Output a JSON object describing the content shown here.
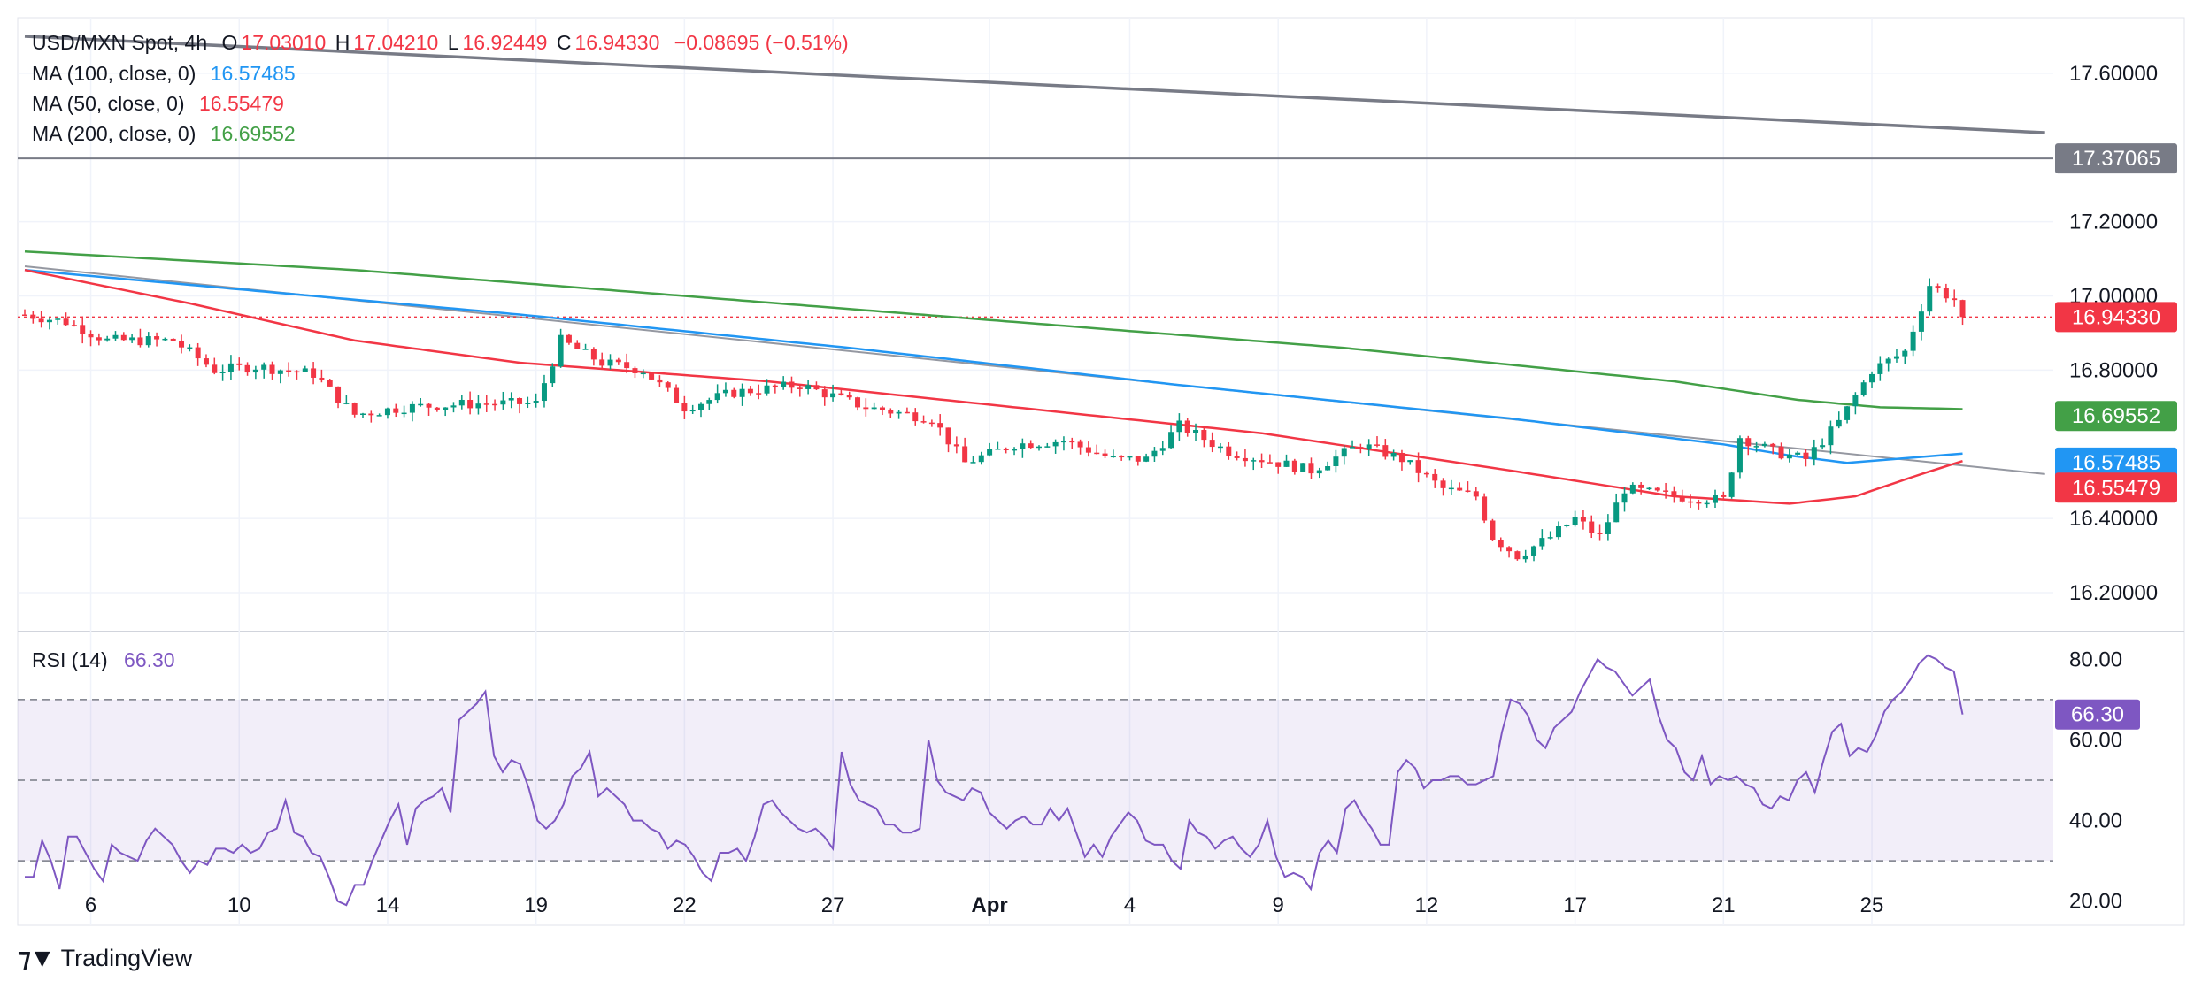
{
  "header": {
    "symbol": "USD/MXN Spot, 4h",
    "o_label": "O",
    "o_value": "17.03010",
    "h_label": "H",
    "h_value": "17.04210",
    "l_label": "L",
    "l_value": "16.92449",
    "c_label": "C",
    "c_value": "16.94330",
    "change": "−0.08695 (−0.51%)"
  },
  "legend_ma": [
    {
      "label": "MA (100, close, 0)",
      "value": "16.57485",
      "color": "#2196f3"
    },
    {
      "label": "MA (50, close, 0)",
      "value": "16.55479",
      "color": "#f23645"
    },
    {
      "label": "MA (200, close, 0)",
      "value": "16.69552",
      "color": "#43a047"
    }
  ],
  "rsi_legend": {
    "label": "RSI (14)",
    "value": "66.30",
    "color": "#7e57c2"
  },
  "brand": {
    "name": "TradingView"
  },
  "chart_data": [
    {
      "type": "candlestick",
      "title": "USD/MXN Spot, 4h",
      "ylim": [
        16.1,
        17.75
      ],
      "y_ticks": [
        "17.60000",
        "17.20000",
        "17.00000",
        "16.80000",
        "16.40000",
        "16.20000"
      ],
      "x_ticks": [
        "6",
        "10",
        "14",
        "19",
        "22",
        "27",
        "Apr",
        "4",
        "9",
        "12",
        "17",
        "21",
        "25"
      ],
      "series": [
        {
          "name": "Price",
          "color_up": "#089981",
          "color_down": "#f23645",
          "anchors": [
            [
              0,
              16.95
            ],
            [
              5,
              16.93
            ],
            [
              10,
              16.88
            ],
            [
              18,
              16.88
            ],
            [
              23,
              16.8
            ],
            [
              28,
              16.81
            ],
            [
              35,
              16.79
            ],
            [
              40,
              16.68
            ],
            [
              46,
              16.7
            ],
            [
              55,
              16.71
            ],
            [
              62,
              16.71
            ],
            [
              65,
              16.88
            ],
            [
              70,
              16.82
            ],
            [
              75,
              16.8
            ],
            [
              80,
              16.7
            ],
            [
              86,
              16.74
            ],
            [
              94,
              16.76
            ],
            [
              102,
              16.7
            ],
            [
              110,
              16.67
            ],
            [
              114,
              16.55
            ],
            [
              120,
              16.6
            ],
            [
              126,
              16.61
            ],
            [
              132,
              16.56
            ],
            [
              136,
              16.56
            ],
            [
              140,
              16.65
            ],
            [
              146,
              16.58
            ],
            [
              152,
              16.55
            ],
            [
              156,
              16.53
            ],
            [
              162,
              16.6
            ],
            [
              167,
              16.56
            ],
            [
              172,
              16.48
            ],
            [
              176,
              16.46
            ],
            [
              178,
              16.35
            ],
            [
              181,
              16.3
            ],
            [
              185,
              16.35
            ],
            [
              188,
              16.4
            ],
            [
              191,
              16.35
            ],
            [
              194,
              16.48
            ],
            [
              200,
              16.46
            ],
            [
              206,
              16.45
            ],
            [
              208,
              16.62
            ],
            [
              212,
              16.58
            ],
            [
              216,
              16.56
            ],
            [
              220,
              16.66
            ],
            [
              224,
              16.8
            ],
            [
              228,
              16.85
            ],
            [
              231,
              17.03
            ],
            [
              234,
              16.99
            ],
            [
              235,
              16.94
            ]
          ]
        }
      ],
      "moving_averages": [
        {
          "name": "MA (100, close, 0)",
          "color": "#2196f3",
          "points": [
            [
              0,
              17.07
            ],
            [
              20,
              17.03
            ],
            [
              60,
              16.95
            ],
            [
              100,
              16.86
            ],
            [
              140,
              16.76
            ],
            [
              180,
              16.67
            ],
            [
              206,
              16.6
            ],
            [
              214,
              16.57
            ],
            [
              221,
              16.55
            ],
            [
              235,
              16.575
            ]
          ],
          "last": 16.57485
        },
        {
          "name": "MA (50, close, 0)",
          "color": "#f23645",
          "points": [
            [
              0,
              17.07
            ],
            [
              20,
              16.98
            ],
            [
              40,
              16.88
            ],
            [
              60,
              16.82
            ],
            [
              90,
              16.77
            ],
            [
              120,
              16.7
            ],
            [
              150,
              16.63
            ],
            [
              180,
              16.53
            ],
            [
              200,
              16.46
            ],
            [
              214,
              16.44
            ],
            [
              222,
              16.46
            ],
            [
              230,
              16.52
            ],
            [
              235,
              16.555
            ]
          ],
          "last": 16.55479
        },
        {
          "name": "MA (200, close, 0)",
          "color": "#43a047",
          "points": [
            [
              0,
              17.12
            ],
            [
              40,
              17.07
            ],
            [
              80,
              17.0
            ],
            [
              120,
              16.93
            ],
            [
              160,
              16.86
            ],
            [
              200,
              16.77
            ],
            [
              215,
              16.72
            ],
            [
              225,
              16.7
            ],
            [
              235,
              16.695
            ]
          ],
          "last": 16.69552
        }
      ],
      "trend_lines": [
        {
          "name": "long downtrend",
          "color": "#787b86",
          "from": [
            0,
            17.7
          ],
          "to": [
            245,
            17.44
          ]
        },
        {
          "name": "short downtrend",
          "color": "#9598a1",
          "from": [
            0,
            17.08
          ],
          "to": [
            245,
            16.52
          ]
        }
      ],
      "horizontal_levels": [
        {
          "name": "resistance level",
          "value": 17.37065,
          "label": "17.37065",
          "color": "#787b86"
        },
        {
          "name": "last price",
          "value": 16.9433,
          "label": "16.94330",
          "color": "#f23645"
        }
      ],
      "price_labels": [
        {
          "value": 16.9433,
          "label": "16.94330",
          "color": "#f23645"
        },
        {
          "value": 16.69552,
          "label": "16.69552",
          "color": "#43a047"
        },
        {
          "value": 16.57485,
          "label": "16.57485",
          "color": "#2196f3"
        },
        {
          "value": 16.55479,
          "label": "16.55479",
          "color": "#f23645"
        }
      ]
    },
    {
      "type": "line",
      "title": "RSI (14)",
      "ylim": [
        14,
        86
      ],
      "y_ticks": [
        "80.00",
        "60.00",
        "40.00",
        "20.00"
      ],
      "levels": [
        70,
        50,
        30
      ],
      "last": 66.3,
      "last_label": "66.30",
      "series": [
        {
          "name": "RSI (14)",
          "color": "#7e57c2",
          "values": [
            26,
            26,
            35,
            30,
            23,
            36,
            36,
            32,
            28,
            25,
            34,
            32,
            31,
            30,
            35,
            38,
            36,
            34,
            30,
            27,
            30,
            29,
            33,
            33,
            32,
            34,
            32,
            33,
            37,
            38,
            45,
            37,
            36,
            32,
            31,
            26,
            20,
            19,
            24,
            24,
            30,
            35,
            40,
            44,
            34,
            43,
            45,
            46,
            48,
            42,
            65,
            67,
            69,
            72,
            56,
            52,
            55,
            54,
            48,
            40,
            38,
            40,
            44,
            51,
            53,
            57,
            46,
            48,
            46,
            44,
            40,
            40,
            38,
            37,
            33,
            35,
            34,
            31,
            27,
            25,
            32,
            32,
            33,
            30,
            36,
            44,
            45,
            42,
            40,
            38,
            37,
            38,
            36,
            33,
            57,
            49,
            45,
            44,
            43,
            39,
            39,
            37,
            37,
            38,
            60,
            50,
            47,
            46,
            45,
            48,
            47,
            42,
            40,
            38,
            40,
            41,
            39,
            39,
            43,
            40,
            43,
            37,
            31,
            34,
            31,
            36,
            39,
            42,
            40,
            35,
            34,
            34,
            30,
            28,
            40,
            37,
            36,
            33,
            35,
            36,
            33,
            31,
            34,
            40,
            31,
            26,
            27,
            26,
            23,
            32,
            35,
            32,
            43,
            45,
            41,
            38,
            34,
            34,
            52,
            55,
            53,
            48,
            50,
            50,
            51,
            51,
            49,
            49,
            50,
            51,
            62,
            70,
            69,
            66,
            60,
            58,
            63,
            65,
            67,
            72,
            76,
            80,
            78,
            77,
            74,
            71,
            73,
            75,
            66,
            60,
            58,
            52,
            50,
            56,
            49,
            51,
            50,
            51,
            49,
            48,
            44,
            43,
            46,
            45,
            50,
            52,
            47,
            55,
            62,
            64,
            56,
            58,
            57,
            61,
            67,
            70,
            72,
            75,
            79,
            81,
            80,
            78,
            77,
            66.3
          ]
        }
      ]
    }
  ]
}
